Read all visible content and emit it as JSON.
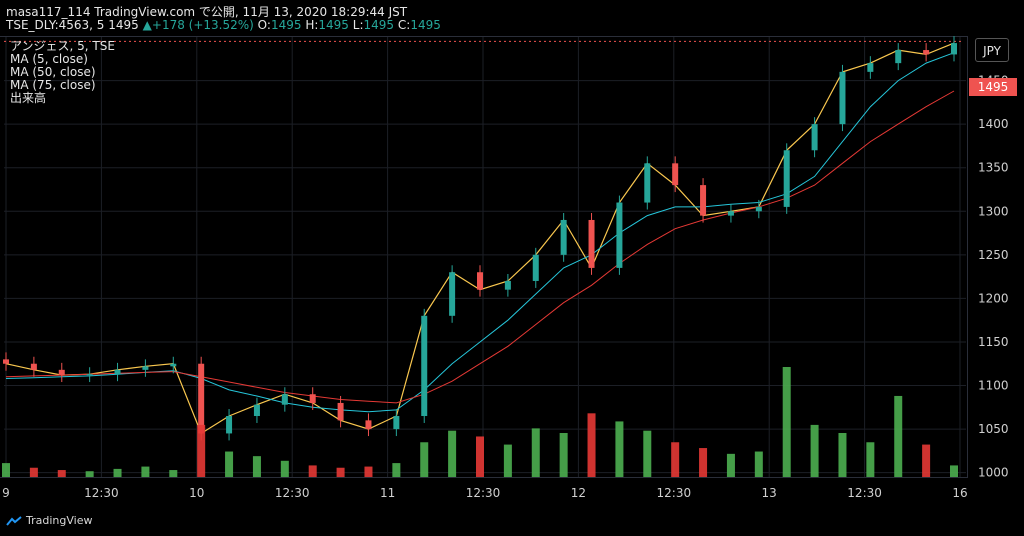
{
  "header": {
    "line1": "masa117_114 TradingView.com で公開, 11月 13, 2020 18:29:44 JST",
    "symbol": "TSE_DLY:4563, 5",
    "last": "1495",
    "change_arrow": "▲",
    "change": "+178 (+13.52%)",
    "o_label": "O:",
    "o_value": "1495",
    "h_label": "H:",
    "h_value": "1495",
    "l_label": "L:",
    "l_value": "1495",
    "c_label": "C:",
    "c_value": "1495"
  },
  "legend": {
    "title": "アンジェス, 5, TSE",
    "ma5": "MA (5, close)",
    "ma50": "MA (50, close)",
    "ma75": "MA (75, close)",
    "volume": "出来高"
  },
  "currency": "JPY",
  "price_tag": "1495",
  "branding": "TradingView",
  "colors": {
    "up": "#26a69a",
    "down": "#ef5350",
    "vol_up": "#4caf50",
    "vol_down": "#e53935",
    "ma5": "#f9c74f",
    "ma50": "#26c6da",
    "ma75": "#e53935",
    "background": "#000000",
    "grid": "#1c1f26"
  },
  "chart_data": {
    "type": "candlestick",
    "y_axis": {
      "ticks": [
        1000,
        1050,
        1100,
        1150,
        1200,
        1250,
        1300,
        1350,
        1400,
        1450
      ],
      "range": [
        995,
        1500
      ]
    },
    "x_axis": {
      "ticks": [
        "9",
        "12:30",
        "10",
        "12:30",
        "11",
        "12:30",
        "12",
        "12:30",
        "13",
        "12:30",
        "16"
      ]
    },
    "series": [
      {
        "name": "MA (5, close)",
        "values": [
          1125,
          1118,
          1112,
          1113,
          1118,
          1122,
          1125,
          1045,
          1065,
          1078,
          1090,
          1080,
          1060,
          1050,
          1065,
          1180,
          1230,
          1210,
          1220,
          1250,
          1290,
          1235,
          1310,
          1355,
          1330,
          1295,
          1300,
          1305,
          1370,
          1400,
          1460,
          1470,
          1485,
          1480,
          1493
        ]
      },
      {
        "name": "MA (50, close)",
        "values": [
          1108,
          1109,
          1110,
          1111,
          1113,
          1115,
          1117,
          1108,
          1095,
          1088,
          1080,
          1075,
          1072,
          1070,
          1072,
          1095,
          1125,
          1150,
          1175,
          1205,
          1235,
          1250,
          1275,
          1295,
          1305,
          1305,
          1308,
          1310,
          1320,
          1340,
          1380,
          1420,
          1450,
          1470,
          1482
        ]
      },
      {
        "name": "MA (75, close)",
        "values": [
          1110,
          1111,
          1112,
          1113,
          1114,
          1115,
          1116,
          1110,
          1104,
          1098,
          1092,
          1088,
          1084,
          1082,
          1080,
          1090,
          1105,
          1125,
          1145,
          1170,
          1195,
          1215,
          1240,
          1262,
          1280,
          1290,
          1298,
          1305,
          1315,
          1330,
          1355,
          1380,
          1400,
          1420,
          1438
        ]
      },
      {
        "name": "出来高",
        "values": [
          12,
          8,
          6,
          5,
          7,
          9,
          6,
          45,
          22,
          18,
          14,
          10,
          8,
          9,
          12,
          30,
          40,
          35,
          28,
          42,
          38,
          55,
          48,
          40,
          30,
          25,
          20,
          22,
          95,
          45,
          38,
          30,
          70,
          28,
          10
        ]
      }
    ],
    "candles_summary": {
      "day9": {
        "open": 1135,
        "close": 1125
      },
      "day10": {
        "open": 1120,
        "close": 1050
      },
      "day11": {
        "open": 1055,
        "close": 1310
      },
      "day12": {
        "open": 1250,
        "close": 1300
      },
      "day13": {
        "open": 1395,
        "close": 1495
      }
    }
  }
}
